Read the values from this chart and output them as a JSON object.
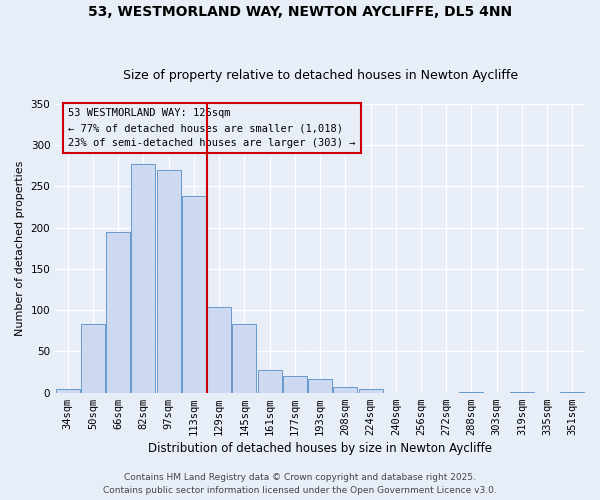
{
  "title": "53, WESTMORLAND WAY, NEWTON AYCLIFFE, DL5 4NN",
  "subtitle": "Size of property relative to detached houses in Newton Aycliffe",
  "xlabel": "Distribution of detached houses by size in Newton Aycliffe",
  "ylabel": "Number of detached properties",
  "bar_labels": [
    "34sqm",
    "50sqm",
    "66sqm",
    "82sqm",
    "97sqm",
    "113sqm",
    "129sqm",
    "145sqm",
    "161sqm",
    "177sqm",
    "193sqm",
    "208sqm",
    "224sqm",
    "240sqm",
    "256sqm",
    "272sqm",
    "288sqm",
    "303sqm",
    "319sqm",
    "335sqm",
    "351sqm"
  ],
  "bar_values": [
    5,
    83,
    195,
    277,
    270,
    238,
    104,
    83,
    27,
    20,
    16,
    7,
    5,
    0,
    0,
    0,
    1,
    0,
    1,
    0,
    1
  ],
  "bar_color": "#ccd9f0",
  "bar_edge_color": "#6699cc",
  "vline_x": 5.5,
  "vline_color": "#cc0000",
  "annotation_title": "53 WESTMORLAND WAY: 126sqm",
  "annotation_line1": "← 77% of detached houses are smaller (1,018)",
  "annotation_line2": "23% of semi-detached houses are larger (303) →",
  "ylim": [
    0,
    350
  ],
  "yticks": [
    0,
    50,
    100,
    150,
    200,
    250,
    300,
    350
  ],
  "footer_line1": "Contains HM Land Registry data © Crown copyright and database right 2025.",
  "footer_line2": "Contains public sector information licensed under the Open Government Licence v3.0.",
  "background_color": "#e8eef8",
  "grid_color": "#ffffff",
  "title_fontsize": 10,
  "subtitle_fontsize": 9,
  "xlabel_fontsize": 8.5,
  "ylabel_fontsize": 8,
  "tick_fontsize": 7.5,
  "ann_fontsize": 7.5,
  "footer_fontsize": 6.5
}
